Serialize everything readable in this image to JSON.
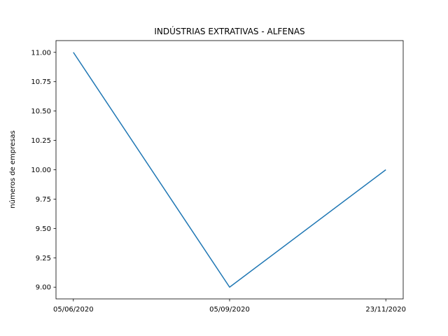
{
  "chart_data": {
    "type": "line",
    "title": "INDÚSTRIAS EXTRATIVAS - ALFENAS",
    "xlabel": "",
    "ylabel": "números de empresas",
    "categories": [
      "05/06/2020",
      "05/09/2020",
      "23/11/2020"
    ],
    "series": [
      {
        "values": [
          11,
          9,
          10
        ],
        "color": "#1f77b4"
      }
    ],
    "ylim": [
      8.9,
      11.1
    ],
    "yticks": [
      "9.00",
      "9.25",
      "9.50",
      "9.75",
      "10.00",
      "10.25",
      "10.50",
      "10.75",
      "11.00"
    ],
    "grid": false,
    "legend": "none"
  }
}
